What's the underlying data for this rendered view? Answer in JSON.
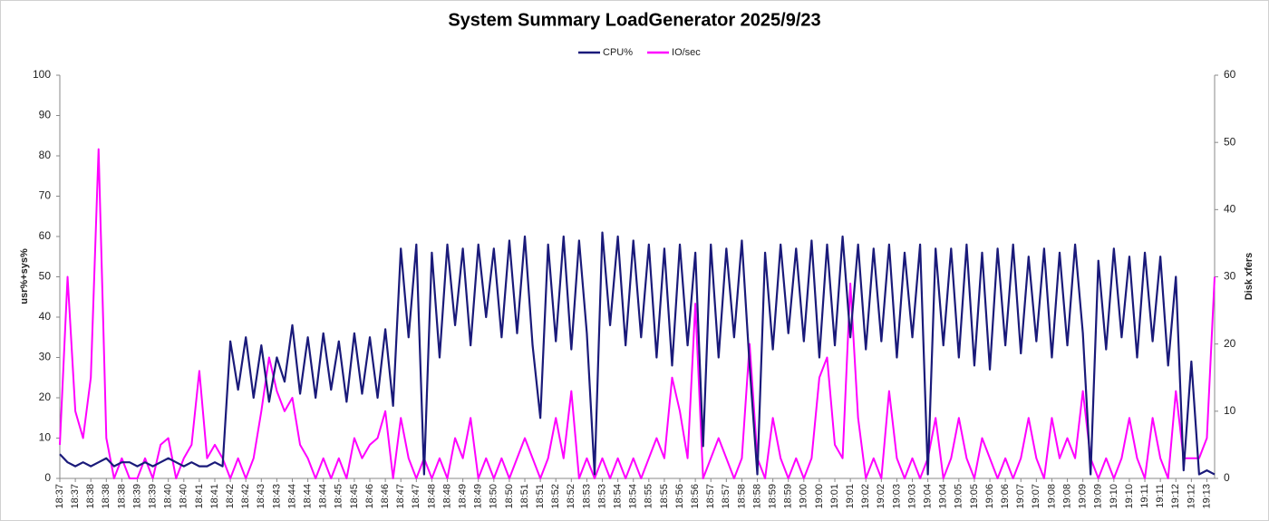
{
  "chart_data": {
    "type": "line",
    "title": "System Summary LoadGenerator  2025/9/23",
    "y_label": "usr%+sys%",
    "y2_label": "Disk xfers",
    "legend": "top",
    "grid": false,
    "ylim": [
      0,
      100
    ],
    "yticks": [
      0,
      10,
      20,
      30,
      40,
      50,
      60,
      70,
      80,
      90,
      100
    ],
    "y2lim": [
      0,
      60
    ],
    "y2ticks": [
      0,
      10,
      20,
      30,
      40,
      50,
      60
    ],
    "categories": [
      "18:37",
      null,
      "18:37",
      null,
      "18:38",
      null,
      "18:38",
      null,
      "18:38",
      null,
      "18:39",
      null,
      "18:39",
      null,
      "18:40",
      null,
      "18:40",
      null,
      "18:41",
      null,
      "18:41",
      null,
      "18:42",
      null,
      "18:42",
      null,
      "18:43",
      null,
      "18:43",
      null,
      "18:44",
      null,
      "18:44",
      null,
      "18:44",
      null,
      "18:45",
      null,
      "18:45",
      null,
      "18:46",
      null,
      "18:46",
      null,
      "18:47",
      null,
      "18:47",
      null,
      "18:48",
      null,
      "18:48",
      null,
      "18:49",
      null,
      "18:49",
      null,
      "18:50",
      null,
      "18:50",
      null,
      "18:51",
      null,
      "18:51",
      null,
      "18:52",
      null,
      "18:52",
      null,
      "18:53",
      null,
      "18:53",
      null,
      "18:54",
      null,
      "18:54",
      null,
      "18:55",
      null,
      "18:55",
      null,
      "18:56",
      null,
      "18:56",
      null,
      "18:57",
      null,
      "18:57",
      null,
      "18:58",
      null,
      "18:58",
      null,
      "18:59",
      null,
      "18:59",
      null,
      "19:00",
      null,
      "19:00",
      null,
      "19:01",
      null,
      "19:01",
      null,
      "19:02",
      null,
      "19:02",
      null,
      "19:03",
      null,
      "19:03",
      null,
      "19:04",
      null,
      "19:04",
      null,
      "19:05",
      null,
      "19:05",
      null,
      "19:06",
      null,
      "19:06",
      null,
      "19:07",
      null,
      "19:07",
      null,
      "19:08",
      null,
      "19:08",
      null,
      "19:09",
      null,
      "19:09",
      null,
      "19:10",
      null,
      "19:10",
      null,
      "19:11",
      null,
      "19:11",
      null,
      "19:12",
      null,
      "19:12",
      null,
      "19:13",
      null
    ],
    "series": [
      {
        "name": "CPU%",
        "color": "#1a1a7a",
        "axis": "y",
        "values": [
          6,
          4,
          3,
          4,
          3,
          4,
          5,
          3,
          4,
          4,
          3,
          4,
          3,
          4,
          5,
          4,
          3,
          4,
          3,
          3,
          4,
          3,
          34,
          22,
          35,
          20,
          33,
          19,
          30,
          24,
          38,
          21,
          35,
          20,
          36,
          22,
          34,
          19,
          36,
          21,
          35,
          20,
          37,
          18,
          57,
          35,
          58,
          1,
          56,
          30,
          58,
          38,
          57,
          33,
          58,
          40,
          57,
          35,
          59,
          36,
          60,
          33,
          15,
          58,
          34,
          60,
          32,
          59,
          36,
          1,
          61,
          38,
          60,
          33,
          59,
          35,
          58,
          30,
          57,
          28,
          58,
          33,
          56,
          8,
          58,
          30,
          57,
          35,
          59,
          28,
          1,
          56,
          32,
          58,
          36,
          57,
          34,
          59,
          30,
          58,
          33,
          60,
          35,
          58,
          32,
          57,
          34,
          58,
          30,
          56,
          35,
          58,
          1,
          57,
          33,
          57,
          30,
          58,
          28,
          56,
          27,
          57,
          33,
          58,
          31,
          55,
          34,
          57,
          30,
          56,
          33,
          58,
          36,
          1,
          54,
          32,
          57,
          35,
          55,
          30,
          56,
          34,
          55,
          28,
          50,
          2,
          29,
          1,
          2,
          1
        ]
      },
      {
        "name": "IO/sec",
        "color": "#ff00ff",
        "axis": "y2",
        "values": [
          5,
          30,
          10,
          6,
          15,
          49,
          6,
          0,
          3,
          0,
          0,
          3,
          0,
          5,
          6,
          0,
          3,
          5,
          16,
          3,
          5,
          3,
          0,
          3,
          0,
          3,
          10,
          18,
          13,
          10,
          12,
          5,
          3,
          0,
          3,
          0,
          3,
          0,
          6,
          3,
          5,
          6,
          10,
          0,
          9,
          3,
          0,
          3,
          0,
          3,
          0,
          6,
          3,
          9,
          0,
          3,
          0,
          3,
          0,
          3,
          6,
          3,
          0,
          3,
          9,
          3,
          13,
          0,
          3,
          0,
          3,
          0,
          3,
          0,
          3,
          0,
          3,
          6,
          3,
          15,
          10,
          3,
          26,
          0,
          3,
          6,
          3,
          0,
          3,
          20,
          3,
          0,
          9,
          3,
          0,
          3,
          0,
          3,
          15,
          18,
          5,
          3,
          29,
          9,
          0,
          3,
          0,
          13,
          3,
          0,
          3,
          0,
          3,
          9,
          0,
          3,
          9,
          3,
          0,
          6,
          3,
          0,
          3,
          0,
          3,
          9,
          3,
          0,
          9,
          3,
          6,
          3,
          13,
          3,
          0,
          3,
          0,
          3,
          9,
          3,
          0,
          9,
          3,
          0,
          13,
          3,
          3,
          3,
          6,
          30
        ]
      }
    ]
  }
}
